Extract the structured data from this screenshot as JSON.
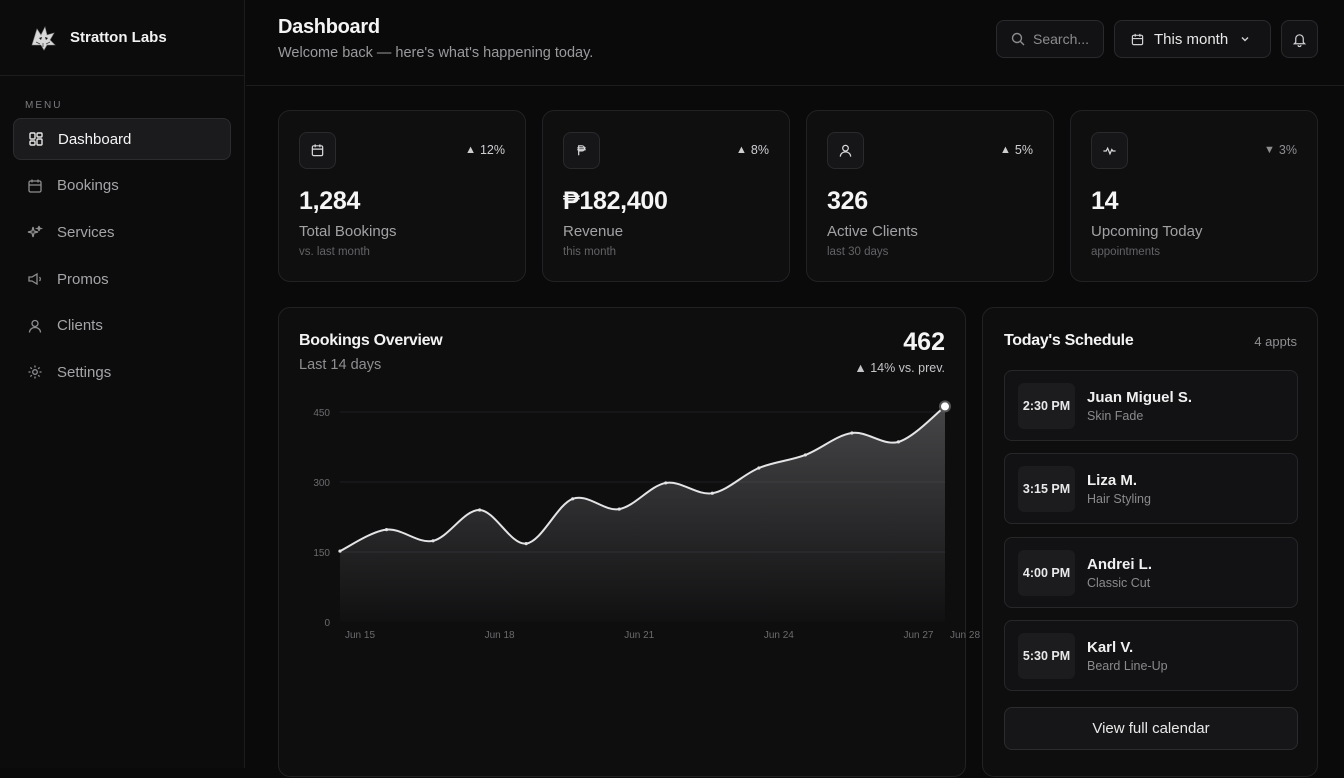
{
  "brand": {
    "name": "Stratton Labs"
  },
  "sidebar": {
    "menu_label": "MENU",
    "items": [
      {
        "label": "Dashboard",
        "icon": "grid-icon",
        "active": true
      },
      {
        "label": "Bookings",
        "icon": "calendar-icon"
      },
      {
        "label": "Services",
        "icon": "sparkle-icon"
      },
      {
        "label": "Promos",
        "icon": "megaphone-icon"
      },
      {
        "label": "Clients",
        "icon": "user-icon"
      },
      {
        "label": "Settings",
        "icon": "gear-icon"
      }
    ]
  },
  "header": {
    "title": "Dashboard",
    "subtitle": "Welcome back — here's what's happening today.",
    "search_placeholder": "Search...",
    "period": "This month"
  },
  "stats": [
    {
      "icon": "calendar-icon",
      "change": "12%",
      "direction": "up",
      "value": "1,284",
      "label": "Total Bookings",
      "sub": "vs. last month"
    },
    {
      "icon": "peso-icon",
      "change": "8%",
      "direction": "up",
      "value": "₱182,400",
      "label": "Revenue",
      "sub": "this month"
    },
    {
      "icon": "user-icon",
      "change": "5%",
      "direction": "up",
      "value": "326",
      "label": "Active Clients",
      "sub": "last 30 days"
    },
    {
      "icon": "activity-icon",
      "change": "3%",
      "direction": "down",
      "value": "14",
      "label": "Upcoming Today",
      "sub": "appointments"
    }
  ],
  "overview": {
    "title": "Bookings Overview",
    "subtitle": "Last 14 days",
    "total": "462",
    "change": "▲ 14% vs. prev."
  },
  "chart_data": {
    "type": "area",
    "title": "Bookings Overview",
    "subtitle": "Last 14 days",
    "x": [
      "Jun 15",
      "Jun 16",
      "Jun 17",
      "Jun 18",
      "Jun 19",
      "Jun 20",
      "Jun 21",
      "Jun 22",
      "Jun 23",
      "Jun 24",
      "Jun 25",
      "Jun 26",
      "Jun 27",
      "Jun 28"
    ],
    "values": [
      152,
      198,
      174,
      240,
      168,
      264,
      242,
      298,
      276,
      330,
      358,
      405,
      386,
      462
    ],
    "xticks": [
      "Jun 15",
      "Jun 18",
      "Jun 21",
      "Jun 24",
      "Jun 27",
      "Jun 28"
    ],
    "yticks": [
      0,
      150,
      300,
      450
    ],
    "ylim": [
      0,
      450
    ],
    "grid": true,
    "xlabel": "",
    "ylabel": ""
  },
  "schedule": {
    "title": "Today's Schedule",
    "count": "4 appts",
    "items": [
      {
        "time": "2:30 PM",
        "name": "Juan Miguel S.",
        "service": "Skin Fade"
      },
      {
        "time": "3:15 PM",
        "name": "Liza M.",
        "service": "Hair Styling"
      },
      {
        "time": "4:00 PM",
        "name": "Andrei L.",
        "service": "Classic Cut"
      },
      {
        "time": "5:30 PM",
        "name": "Karl V.",
        "service": "Beard Line-Up"
      }
    ],
    "view_all": "View full calendar"
  }
}
